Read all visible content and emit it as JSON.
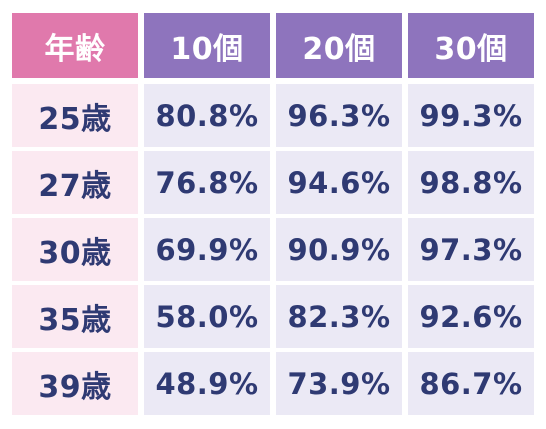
{
  "table": {
    "headers": [
      "年齢",
      "10個",
      "20個",
      "30個"
    ],
    "rows": [
      {
        "age": "25歳",
        "values": [
          "80.8%",
          "96.3%",
          "99.3%"
        ]
      },
      {
        "age": "27歳",
        "values": [
          "76.8%",
          "94.6%",
          "98.8%"
        ]
      },
      {
        "age": "30歳",
        "values": [
          "69.9%",
          "90.9%",
          "97.3%"
        ]
      },
      {
        "age": "35歳",
        "values": [
          "58.0%",
          "82.3%",
          "92.6%"
        ]
      },
      {
        "age": "39歳",
        "values": [
          "48.9%",
          "73.9%",
          "86.7%"
        ]
      }
    ]
  },
  "colors": {
    "header_age_bg": "#e079ac",
    "header_col_bg": "#8e74bd",
    "age_cell_bg": "#fbe9f1",
    "value_cell_bg": "#ebe9f5",
    "text": "#2f3a73"
  }
}
